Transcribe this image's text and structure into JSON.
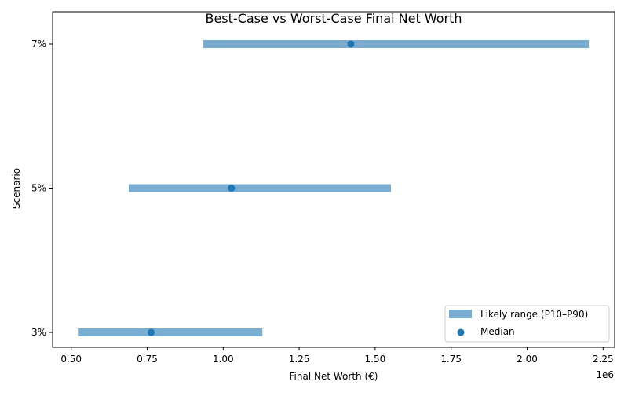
{
  "chart_data": {
    "type": "range-dot",
    "title": "Best-Case vs Worst-Case Final Net Worth",
    "xlabel": "Final Net Worth (€)",
    "ylabel": "Scenario",
    "x_offset_label": "1e6",
    "xlim": [
      0.45,
      2.29
    ],
    "x_scale_multiplier": 1000000,
    "x_ticks": [
      0.5,
      0.75,
      1.0,
      1.25,
      1.5,
      1.75,
      2.0,
      2.25
    ],
    "x_tick_labels": [
      "0.50",
      "0.75",
      "1.00",
      "1.25",
      "1.50",
      "1.75",
      "2.00",
      "2.25"
    ],
    "categories": [
      "3%",
      "5%",
      "7%"
    ],
    "series": [
      {
        "name": "Likely range (P10–P90)",
        "type": "range",
        "low": [
          0.522,
          0.689,
          0.934
        ],
        "high": [
          1.129,
          1.552,
          2.203
        ],
        "color": "#79add2"
      },
      {
        "name": "Median",
        "type": "scatter",
        "values": [
          0.763,
          1.027,
          1.42
        ],
        "color": "#1f77b4"
      }
    ],
    "grid": false,
    "legend": "lower-right"
  }
}
